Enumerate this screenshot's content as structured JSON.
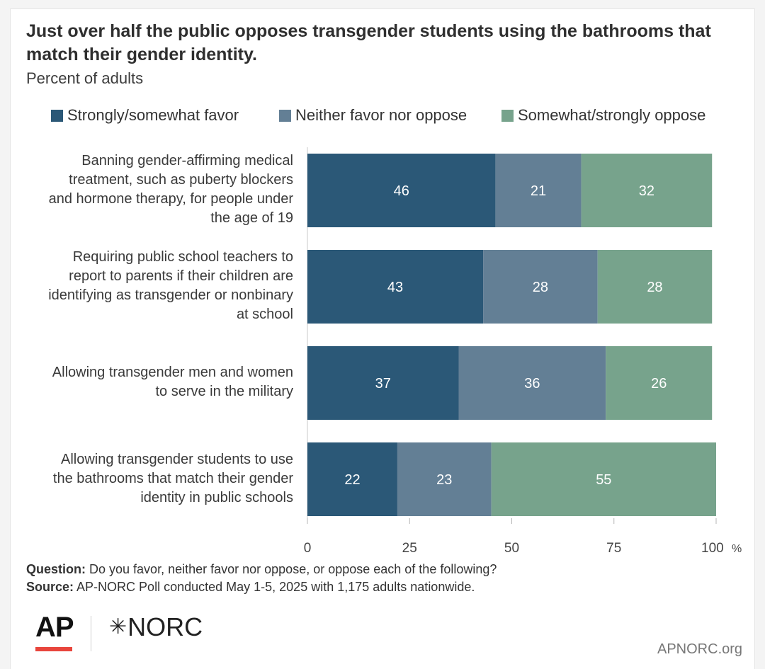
{
  "title": "Just over half the public opposes transgender students using the bathrooms that match their gender identity.",
  "subtitle": "Percent of adults",
  "colors": {
    "favor": "#2b5877",
    "neither": "#637f95",
    "oppose": "#77a38c"
  },
  "chart_data": {
    "type": "bar",
    "orientation": "horizontal",
    "stacked": true,
    "title": "Just over half the public opposes transgender students using the bathrooms that match their gender identity.",
    "subtitle": "Percent of adults",
    "categories": [
      "Banning gender-affirming medical treatment, such as puberty blockers and hormone therapy, for people under the age of 19",
      "Requiring public school teachers to report to parents if their children are identifying as transgender or nonbinary at school",
      "Allowing transgender men and women to serve in the military",
      "Allowing transgender students to use the bathrooms that match their gender identity in public schools"
    ],
    "category_lines": [
      [
        "Banning gender-affirming medical",
        "treatment, such as puberty blockers",
        "and hormone therapy, for people under",
        "the age of 19"
      ],
      [
        "Requiring public school teachers to",
        "report to parents if their children are",
        "identifying as transgender or nonbinary",
        "at school"
      ],
      [
        "Allowing transgender men and women",
        "to serve in the military"
      ],
      [
        "Allowing transgender students to use",
        "the bathrooms that match their gender",
        "identity in public schools"
      ]
    ],
    "series": [
      {
        "name": "Strongly/somewhat favor",
        "values": [
          46,
          43,
          37,
          22
        ]
      },
      {
        "name": "Neither favor nor oppose",
        "values": [
          21,
          28,
          36,
          23
        ]
      },
      {
        "name": "Somewhat/strongly oppose",
        "values": [
          32,
          28,
          26,
          55
        ]
      }
    ],
    "xlim": [
      0,
      100
    ],
    "xticks": [
      "0",
      "25",
      "50",
      "75",
      "100"
    ],
    "x_unit": "%",
    "legend_position": "top"
  },
  "footer": {
    "question_label": "Question:",
    "question_text": "Do you favor, neither favor nor oppose, or oppose each of the following?",
    "source_label": "Source:",
    "source_text": "AP-NORC Poll conducted May 1-5, 2025 with 1,175 adults nationwide."
  },
  "logos": {
    "ap": "AP",
    "norc_star": "✳",
    "norc": "NORC"
  },
  "site": "APNORC.org"
}
